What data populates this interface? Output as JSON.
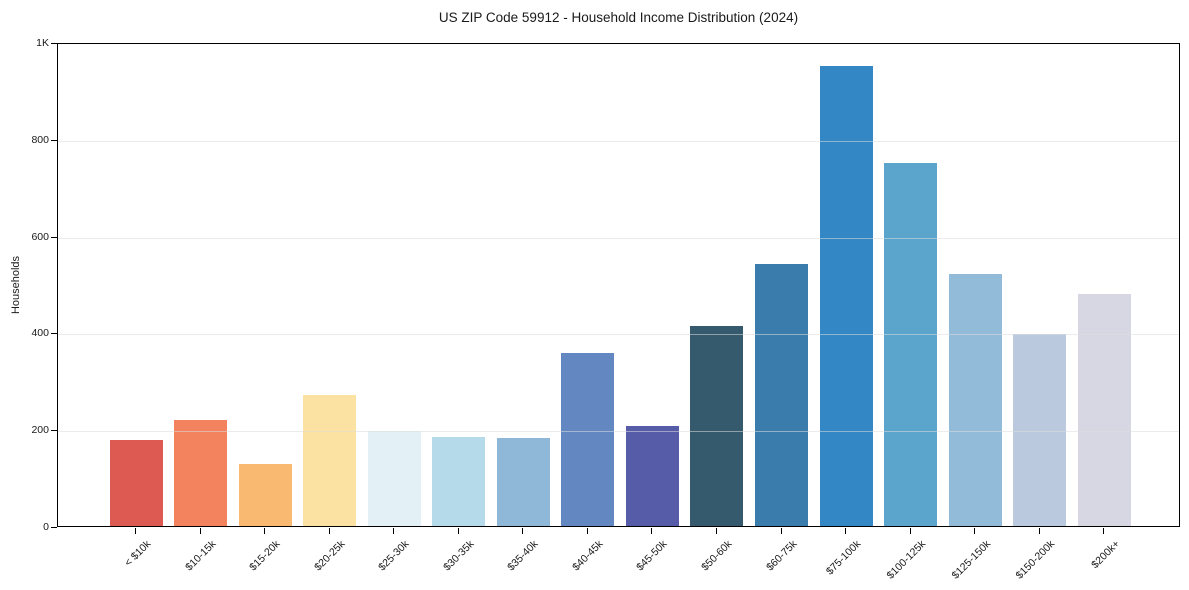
{
  "chart_data": {
    "type": "bar",
    "title": "US ZIP Code 59912 - Household Income Distribution (2024)",
    "xlabel": "",
    "ylabel": "Households",
    "categories": [
      "< $10k",
      "$10-15k",
      "$15-20k",
      "$20-25k",
      "$25-30k",
      "$30-35k",
      "$35-40k",
      "$40-45k",
      "$45-50k",
      "$50-60k",
      "$60-75k",
      "$75-100k",
      "$100-125k",
      "$125-150k",
      "$150-200k",
      "$200k+"
    ],
    "values": [
      178,
      219,
      128,
      271,
      197,
      183,
      181,
      358,
      207,
      414,
      541,
      950,
      749,
      520,
      397,
      480
    ],
    "bar_colors": [
      "#dc5a52",
      "#f3835e",
      "#f9b971",
      "#fce2a2",
      "#e3f1f7",
      "#b5dbeb",
      "#8fb8d8",
      "#6388c1",
      "#575ca8",
      "#355a6e",
      "#3a7dac",
      "#3287c4",
      "#5ba5cd",
      "#92bad9",
      "#bac9de",
      "#d7d7e4"
    ],
    "ylim": [
      0,
      1000
    ],
    "yticks": [
      {
        "value": 0,
        "label": "0"
      },
      {
        "value": 200,
        "label": "200"
      },
      {
        "value": 400,
        "label": "400"
      },
      {
        "value": 600,
        "label": "600"
      },
      {
        "value": 800,
        "label": "800"
      },
      {
        "value": 1000,
        "label": "1K"
      }
    ],
    "grid": "horizontal-only",
    "legend": false,
    "x_tick_rotation_deg": 45,
    "axis_color": "#000000",
    "grid_color": "#dddddd",
    "text_color": "#1a1a1a",
    "background_color": "#ffffff"
  }
}
